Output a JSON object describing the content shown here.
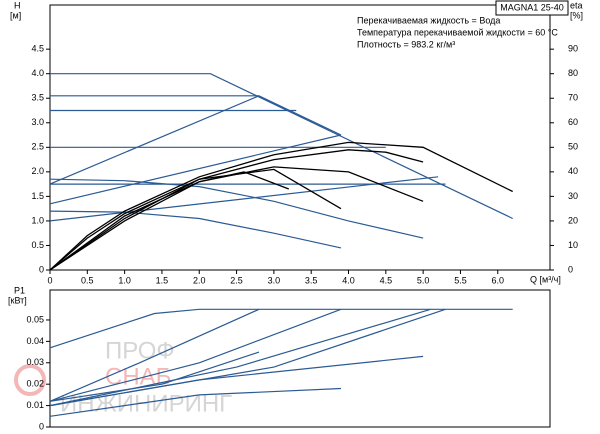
{
  "chart_data": [
    {
      "type": "line",
      "model": "MAGNA1 25-40",
      "notes": [
        "Перекачиваемая жидкость = Вода",
        "Температура перекачиваемой жидкости = 60 °C",
        "Плотность = 983.2 кг/м³"
      ],
      "y_label": "H",
      "y_unit": "[м]",
      "y2_label": "eta",
      "y2_unit": "[%]",
      "x_label": "Q [м³/ч]",
      "xlim": [
        0,
        6.7
      ],
      "ylim": [
        0,
        5.4
      ],
      "y2lim": [
        0,
        108
      ],
      "xticks": [
        0,
        0.5,
        {
          "value": 1,
          "label": "1.0"
        },
        1.5,
        {
          "value": 2,
          "label": "2.0"
        },
        2.5,
        {
          "value": 3,
          "label": "3.0"
        },
        3.5,
        {
          "value": 4,
          "label": "4.0"
        },
        4.5,
        {
          "value": 5,
          "label": "5.0"
        },
        5.5,
        {
          "value": 6,
          "label": "6.0"
        }
      ],
      "yticks": [
        0,
        0.5,
        {
          "value": 1,
          "label": "1.0"
        },
        1.5,
        {
          "value": 2,
          "label": "2.0"
        },
        2.5,
        {
          "value": 3,
          "label": "3.0"
        },
        3.5,
        {
          "value": 4,
          "label": "4.0"
        },
        4.5
      ],
      "y2ticks": [
        0,
        10,
        20,
        30,
        40,
        50,
        60,
        70,
        80,
        90
      ],
      "series": [
        {
          "color": "#2b5a94",
          "x": [
            0,
            2.15,
            6.2
          ],
          "values": [
            4.0,
            4.0,
            1.05
          ]
        },
        {
          "color": "#2b5a94",
          "x": [
            0,
            2.8,
            3.9
          ],
          "values": [
            3.55,
            3.55,
            2.75
          ]
        },
        {
          "color": "#2b5a94",
          "x": [
            0,
            3.3
          ],
          "values": [
            3.25,
            3.25
          ]
        },
        {
          "color": "#2b5a94",
          "x": [
            0,
            4.5
          ],
          "values": [
            2.5,
            2.5
          ]
        },
        {
          "color": "#2b5a94",
          "x": [
            0,
            5.3
          ],
          "values": [
            1.75,
            1.75
          ]
        },
        {
          "color": "#2b5a94",
          "x": [
            0,
            2.8
          ],
          "values": [
            1.75,
            3.55
          ]
        },
        {
          "color": "#2b5a94",
          "x": [
            0,
            3.9
          ],
          "values": [
            1.35,
            2.75
          ]
        },
        {
          "color": "#2b5a94",
          "x": [
            0,
            5.2
          ],
          "values": [
            1.0,
            1.9
          ]
        },
        {
          "color": "#2b5a94",
          "x": [
            0,
            1,
            2,
            3,
            4,
            5
          ],
          "values": [
            1.85,
            1.82,
            1.7,
            1.4,
            1.0,
            0.65
          ]
        },
        {
          "color": "#2b5a94",
          "x": [
            0,
            1,
            2,
            3,
            3.9
          ],
          "values": [
            1.2,
            1.18,
            1.05,
            0.75,
            0.45
          ]
        },
        {
          "color": "#000000",
          "axis": "y2",
          "x": [
            0,
            0.5,
            1,
            2,
            3,
            4,
            5,
            6.2
          ],
          "values": [
            0,
            14,
            24,
            38,
            47,
            52,
            50,
            32
          ]
        },
        {
          "color": "#000000",
          "axis": "y2",
          "x": [
            0,
            0.5,
            1,
            2,
            3,
            4,
            4.5,
            5
          ],
          "values": [
            0,
            13,
            23,
            37,
            45,
            49,
            48,
            44
          ]
        },
        {
          "color": "#000000",
          "axis": "y2",
          "x": [
            0,
            1,
            2,
            3,
            4,
            5
          ],
          "values": [
            0,
            22,
            36,
            42,
            40,
            28
          ]
        },
        {
          "color": "#000000",
          "axis": "y2",
          "x": [
            0,
            1,
            2,
            3,
            3.9
          ],
          "values": [
            0,
            21,
            37,
            41,
            25
          ]
        },
        {
          "color": "#000000",
          "axis": "y2",
          "x": [
            0,
            1,
            2,
            2.6,
            3.2
          ],
          "values": [
            0,
            20,
            36,
            40,
            33
          ]
        }
      ]
    },
    {
      "type": "line",
      "y_label": "P1",
      "y_unit": "[кВт]",
      "xlim": [
        0,
        6.7
      ],
      "ylim": [
        0,
        0.064
      ],
      "yticks": [
        0,
        0.01,
        0.02,
        0.03,
        0.04,
        0.05
      ],
      "series": [
        {
          "color": "#2b5a94",
          "x": [
            0,
            1.4,
            2.0,
            6.2
          ],
          "values": [
            0.037,
            0.053,
            0.055,
            0.055
          ]
        },
        {
          "color": "#2b5a94",
          "x": [
            0,
            1.2,
            2.8
          ],
          "values": [
            0.012,
            0.03,
            0.055
          ]
        },
        {
          "color": "#2b5a94",
          "x": [
            0,
            2,
            3.9
          ],
          "values": [
            0.012,
            0.03,
            0.055
          ]
        },
        {
          "color": "#2b5a94",
          "x": [
            0,
            2.5,
            5.1
          ],
          "values": [
            0.01,
            0.028,
            0.055
          ]
        },
        {
          "color": "#2b5a94",
          "x": [
            0,
            3,
            5.3
          ],
          "values": [
            0.01,
            0.028,
            0.055
          ]
        },
        {
          "color": "#2b5a94",
          "x": [
            0,
            2,
            5.0
          ],
          "values": [
            0.01,
            0.022,
            0.033
          ]
        },
        {
          "color": "#2b5a94",
          "x": [
            0,
            2,
            3.9
          ],
          "values": [
            0.005,
            0.015,
            0.018
          ]
        },
        {
          "color": "#2b5a94",
          "x": [
            0,
            1.5,
            2.8
          ],
          "values": [
            0.012,
            0.02,
            0.035
          ]
        }
      ]
    }
  ],
  "watermark": [
    "ПРОФ",
    "СНАБ",
    "ИНЖИНИРИНГ"
  ]
}
